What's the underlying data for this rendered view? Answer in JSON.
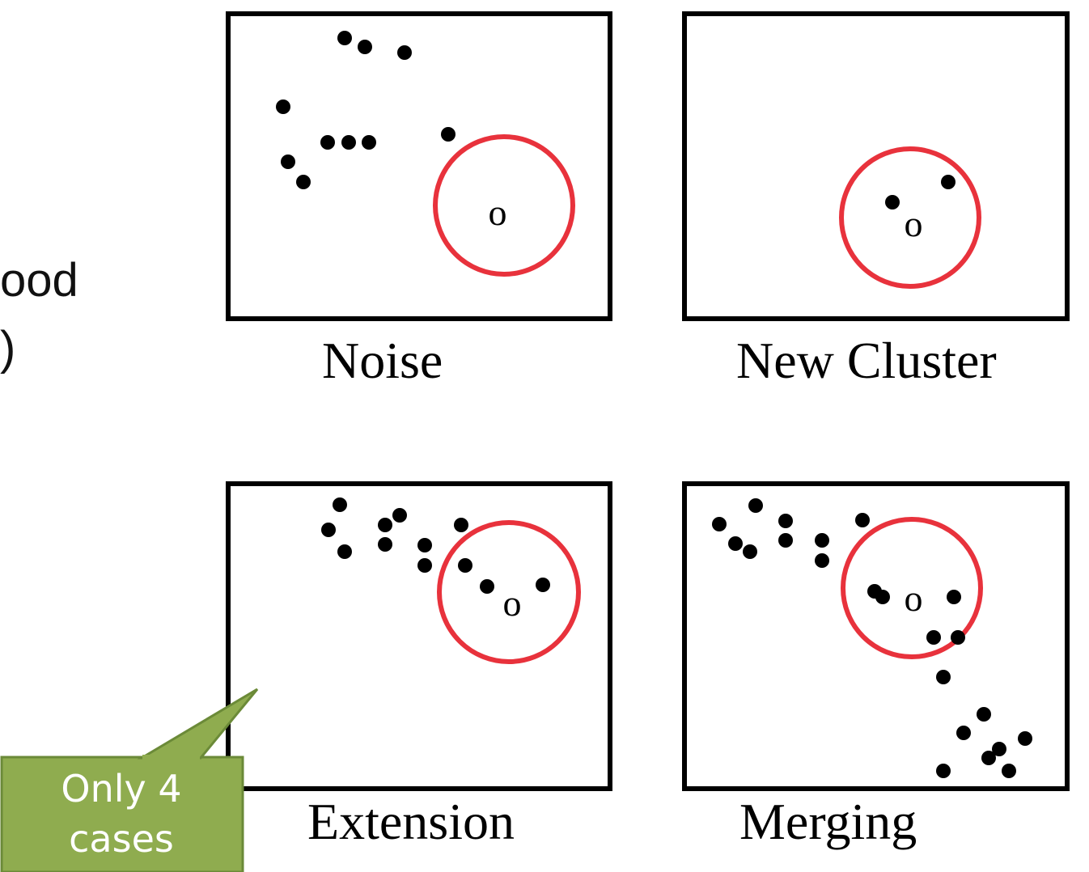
{
  "edge_text": {
    "line1": "ood",
    "line2": ")"
  },
  "panels": [
    {
      "id": "noise",
      "caption": "Noise",
      "center_label": "o"
    },
    {
      "id": "new-cluster",
      "caption": "New Cluster",
      "center_label": "o"
    },
    {
      "id": "extension",
      "caption": "Extension",
      "center_label": "o"
    },
    {
      "id": "merging",
      "caption": "Merging",
      "center_label": "o"
    }
  ],
  "callout": {
    "line1": "Only 4",
    "line2": "cases"
  },
  "colors": {
    "circle": "#e8323c",
    "callout_fill": "#8fac4f",
    "callout_border": "#6b8a38",
    "dot": "#000000"
  }
}
